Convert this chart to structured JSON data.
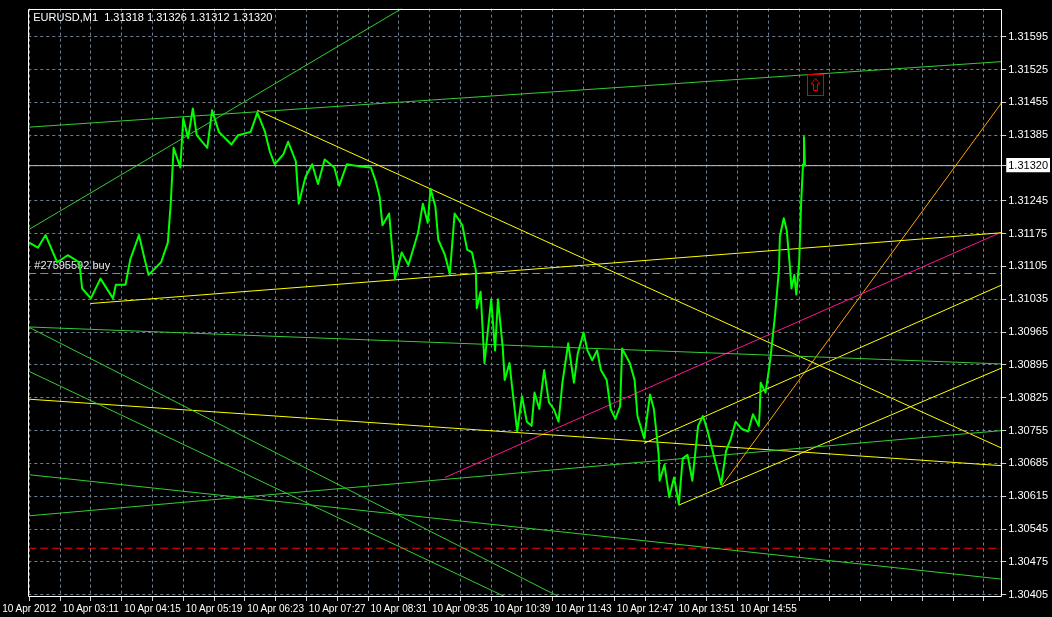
{
  "chart_data": {
    "type": "line",
    "title": "EURUSD,M1  1.31318 1.31326 1.31312 1.31320",
    "series": [
      {
        "color": "#00ff00",
        "x": [
          "2012-04-10T02:07",
          "2012-04-10T02:16",
          "2012-04-10T02:24",
          "2012-04-10T02:36",
          "2012-04-10T02:47",
          "2012-04-10T02:59",
          "2012-04-10T03:02",
          "2012-04-10T03:11",
          "2012-04-10T03:21",
          "2012-04-10T03:34",
          "2012-04-10T03:37",
          "2012-04-10T03:47",
          "2012-04-10T03:52",
          "2012-04-10T04:01",
          "2012-04-10T04:07",
          "2012-04-10T04:11",
          "2012-04-10T04:24",
          "2012-04-10T04:31",
          "2012-04-10T04:34",
          "2012-04-10T04:37",
          "2012-04-10T04:44",
          "2012-04-10T04:47",
          "2012-04-10T04:52",
          "2012-04-10T04:57",
          "2012-04-10T05:01",
          "2012-04-10T05:12",
          "2012-04-10T05:17",
          "2012-04-10T05:24",
          "2012-04-10T05:37",
          "2012-04-10T05:44",
          "2012-04-10T05:57",
          "2012-04-10T06:04",
          "2012-04-10T06:12",
          "2012-04-10T06:17",
          "2012-04-10T06:22",
          "2012-04-10T06:31",
          "2012-04-10T06:36",
          "2012-04-10T06:44",
          "2012-04-10T06:47",
          "2012-04-10T06:54",
          "2012-04-10T07:01",
          "2012-04-10T07:07",
          "2012-04-10T07:14",
          "2012-04-10T07:24",
          "2012-04-10T07:29",
          "2012-04-10T07:37",
          "2012-04-10T07:49",
          "2012-04-10T08:02",
          "2012-04-10T08:07",
          "2012-04-10T08:11",
          "2012-04-10T08:14",
          "2012-04-10T08:21",
          "2012-04-10T08:24",
          "2012-04-10T08:27",
          "2012-04-10T08:34",
          "2012-04-10T08:41",
          "2012-04-10T08:51",
          "2012-04-10T08:56",
          "2012-04-10T09:01",
          "2012-04-10T09:04",
          "2012-04-10T09:09",
          "2012-04-10T09:12",
          "2012-04-10T09:19",
          "2012-04-10T09:24",
          "2012-04-10T09:29",
          "2012-04-10T09:37",
          "2012-04-10T09:42",
          "2012-04-10T09:47",
          "2012-04-10T09:51",
          "2012-04-10T09:52",
          "2012-04-10T09:56",
          "2012-04-10T10:00",
          "2012-04-10T10:07",
          "2012-04-10T10:11",
          "2012-04-10T10:14",
          "2012-04-10T10:19",
          "2012-04-10T10:21",
          "2012-04-10T10:26",
          "2012-04-10T10:29",
          "2012-04-10T10:34",
          "2012-04-10T10:39",
          "2012-04-10T10:44",
          "2012-04-10T10:49",
          "2012-04-10T10:52",
          "2012-04-10T10:57",
          "2012-04-10T11:02",
          "2012-04-10T11:07",
          "2012-04-10T11:12",
          "2012-04-10T11:17",
          "2012-04-10T11:21",
          "2012-04-10T11:27",
          "2012-04-10T11:33",
          "2012-04-10T11:37",
          "2012-04-10T11:43",
          "2012-04-10T11:47",
          "2012-04-10T11:52",
          "2012-04-10T11:57",
          "2012-04-10T12:01",
          "2012-04-10T12:07",
          "2012-04-10T12:11",
          "2012-04-10T12:16",
          "2012-04-10T12:21",
          "2012-04-10T12:23",
          "2012-04-10T12:31",
          "2012-04-10T12:36",
          "2012-04-10T12:39",
          "2012-04-10T12:46",
          "2012-04-10T12:52",
          "2012-04-10T12:56",
          "2012-04-10T12:59",
          "2012-04-10T13:01",
          "2012-04-10T13:02",
          "2012-04-10T13:07",
          "2012-04-10T13:12",
          "2012-04-10T13:17",
          "2012-04-10T13:22",
          "2012-04-10T13:26",
          "2012-04-10T13:31",
          "2012-04-10T13:36",
          "2012-04-10T13:42",
          "2012-04-10T13:47",
          "2012-04-10T13:52",
          "2012-04-10T13:59",
          "2012-04-10T14:06",
          "2012-04-10T14:11",
          "2012-04-10T14:16",
          "2012-04-10T14:21",
          "2012-04-10T14:27",
          "2012-04-10T14:34",
          "2012-04-10T14:39",
          "2012-04-10T14:45",
          "2012-04-10T14:46",
          "2012-04-10T14:47",
          "2012-04-10T14:52",
          "2012-04-10T14:56",
          "2012-04-10T14:58",
          "2012-04-10T15:02",
          "2012-04-10T15:06",
          "2012-04-10T15:07",
          "2012-04-10T15:11",
          "2012-04-10T15:14",
          "2012-04-10T15:17",
          "2012-04-10T15:19",
          "2012-04-10T15:22",
          "2012-04-10T15:24",
          "2012-04-10T15:27",
          "2012-04-10T15:29",
          "2012-04-10T15:31",
          "2012-04-10T15:32",
          "2012-04-10T15:33"
        ],
        "values": [
          1.31156,
          1.31145,
          1.31172,
          1.31114,
          1.31129,
          1.31114,
          1.31058,
          1.31037,
          1.31079,
          1.31037,
          1.31066,
          1.31066,
          1.3112,
          1.31172,
          1.3112,
          1.31087,
          1.31114,
          1.31156,
          1.31239,
          1.31358,
          1.31316,
          1.31421,
          1.31379,
          1.31442,
          1.31385,
          1.31358,
          1.31438,
          1.31392,
          1.31365,
          1.31385,
          1.31392,
          1.31433,
          1.31392,
          1.3135,
          1.31323,
          1.31344,
          1.31371,
          1.31329,
          1.31239,
          1.31296,
          1.31323,
          1.31281,
          1.31333,
          1.31316,
          1.31277,
          1.31323,
          1.31319,
          1.31316,
          1.31287,
          1.31254,
          1.31193,
          1.31218,
          1.31145,
          1.31079,
          1.31135,
          1.31108,
          1.31177,
          1.31239,
          1.31198,
          1.31271,
          1.31233,
          1.31162,
          1.31129,
          1.31089,
          1.31218,
          1.31193,
          1.31141,
          1.31135,
          1.31097,
          1.31016,
          1.31051,
          1.30899,
          1.31035,
          1.30926,
          1.31035,
          1.30932,
          1.30863,
          1.30899,
          1.30843,
          1.30753,
          1.30828,
          1.30774,
          1.30765,
          1.30836,
          1.30801,
          1.30884,
          1.30815,
          1.30801,
          1.30774,
          1.30857,
          1.30941,
          1.30857,
          1.3092,
          1.30964,
          1.30926,
          1.30905,
          1.30926,
          1.30884,
          1.30863,
          1.30801,
          1.3078,
          1.30807,
          1.3093,
          1.30899,
          1.30863,
          1.30786,
          1.30738,
          1.30832,
          1.30801,
          1.30744,
          1.30703,
          1.30648,
          1.30682,
          1.30613,
          1.30655,
          1.30598,
          1.30696,
          1.30703,
          1.30648,
          1.30765,
          1.30786,
          1.30753,
          1.30696,
          1.3064,
          1.30711,
          1.30738,
          1.30774,
          1.30759,
          1.30753,
          1.3079,
          1.30765,
          1.30795,
          1.30857,
          1.30836,
          1.30891,
          1.30926,
          1.31003,
          1.31099,
          1.3117,
          1.31208,
          1.31183,
          1.31114,
          1.31058,
          1.31087,
          1.31045,
          1.31114,
          1.31239,
          1.31323,
          1.31381,
          1.3132
        ]
      },
      {
        "color": "#32cd32",
        "x": [
          "2012-04-10T02:06",
          "2012-04-10T08:34"
        ],
        "values": [
          1.31183,
          1.31655
        ]
      },
      {
        "color": "#32cd32",
        "x": [
          "2012-04-10T02:06",
          "2012-04-10T18:58"
        ],
        "values": [
          1.31402,
          1.31542
        ]
      },
      {
        "color": "#32cd32",
        "x": [
          "2012-04-10T02:06",
          "2012-04-10T18:58"
        ],
        "values": [
          1.30976,
          1.30897
        ]
      },
      {
        "color": "#32cd32",
        "x": [
          "2012-04-10T02:06",
          "2012-04-10T11:18"
        ],
        "values": [
          1.30976,
          1.304
        ]
      },
      {
        "color": "#32cd32",
        "x": [
          "2012-04-10T02:06",
          "2012-04-10T10:22"
        ],
        "values": [
          1.30882,
          1.304
        ]
      },
      {
        "color": "#32cd32",
        "x": [
          "2012-04-10T02:06",
          "2012-04-10T18:58"
        ],
        "values": [
          1.30661,
          1.30438
        ]
      },
      {
        "color": "#32cd32",
        "x": [
          "2012-04-10T02:06",
          "2012-04-10T18:58"
        ],
        "values": [
          1.30573,
          1.30755
        ]
      },
      {
        "color": "#ffff00",
        "x": [
          "2012-04-10T06:04",
          "2012-04-10T18:58"
        ],
        "values": [
          1.31438,
          1.30717
        ]
      },
      {
        "color": "#ffff00",
        "x": [
          "2012-04-10T03:11",
          "2012-04-10T18:58"
        ],
        "values": [
          1.31026,
          1.31177
        ]
      },
      {
        "color": "#ffff00",
        "x": [
          "2012-04-10T02:06",
          "2012-04-10T18:58"
        ],
        "values": [
          1.30822,
          1.3068
        ]
      },
      {
        "color": "#ffff00",
        "x": [
          "2012-04-10T12:46",
          "2012-04-10T18:58"
        ],
        "values": [
          1.30728,
          1.31066
        ]
      },
      {
        "color": "#ffff00",
        "x": [
          "2012-04-10T13:22",
          "2012-04-10T18:58"
        ],
        "values": [
          1.30596,
          1.30889
        ]
      },
      {
        "color": "#ff1493",
        "x": [
          "2012-04-10T09:19",
          "2012-04-10T18:58"
        ],
        "values": [
          1.30655,
          1.31179
        ]
      },
      {
        "color": "#ffa500",
        "x": [
          "2012-04-10T14:07",
          "2012-04-10T18:58"
        ],
        "values": [
          1.30638,
          1.31456
        ]
      }
    ],
    "xlim": [
      "2012-04-10T02:06",
      "2012-04-10T18:58"
    ],
    "xticks": [
      {
        "value": "2012-04-10T02:07",
        "label": "10 Apr 2012"
      },
      {
        "value": "2012-04-10T02:39",
        "label": null
      },
      {
        "value": "2012-04-10T03:11",
        "label": "10 Apr 03:11"
      },
      {
        "value": "2012-04-10T03:43",
        "label": null
      },
      {
        "value": "2012-04-10T04:15",
        "label": "10 Apr 04:15"
      },
      {
        "value": "2012-04-10T04:47",
        "label": null
      },
      {
        "value": "2012-04-10T05:19",
        "label": "10 Apr 05:19"
      },
      {
        "value": "2012-04-10T05:51",
        "label": null
      },
      {
        "value": "2012-04-10T06:23",
        "label": "10 Apr 06:23"
      },
      {
        "value": "2012-04-10T06:55",
        "label": null
      },
      {
        "value": "2012-04-10T07:27",
        "label": "10 Apr 07:27"
      },
      {
        "value": "2012-04-10T07:59",
        "label": null
      },
      {
        "value": "2012-04-10T08:31",
        "label": "10 Apr 08:31"
      },
      {
        "value": "2012-04-10T09:03",
        "label": null
      },
      {
        "value": "2012-04-10T09:35",
        "label": "10 Apr 09:35"
      },
      {
        "value": "2012-04-10T10:07",
        "label": null
      },
      {
        "value": "2012-04-10T10:39",
        "label": "10 Apr 10:39"
      },
      {
        "value": "2012-04-10T11:11",
        "label": null
      },
      {
        "value": "2012-04-10T11:43",
        "label": "10 Apr 11:43"
      },
      {
        "value": "2012-04-10T12:15",
        "label": null
      },
      {
        "value": "2012-04-10T12:47",
        "label": "10 Apr 12:47"
      },
      {
        "value": "2012-04-10T13:19",
        "label": null
      },
      {
        "value": "2012-04-10T13:51",
        "label": "10 Apr 13:51"
      },
      {
        "value": "2012-04-10T14:23",
        "label": null
      },
      {
        "value": "2012-04-10T14:55",
        "label": "10 Apr 14:55"
      },
      {
        "value": "2012-04-10T15:27",
        "label": null
      },
      {
        "value": "2012-04-10T15:59",
        "label": null
      },
      {
        "value": "2012-04-10T16:31",
        "label": null
      },
      {
        "value": "2012-04-10T17:03",
        "label": null
      },
      {
        "value": "2012-04-10T17:35",
        "label": null
      },
      {
        "value": "2012-04-10T18:07",
        "label": null
      },
      {
        "value": "2012-04-10T18:39",
        "label": null
      }
    ],
    "ylim": [
      1.304,
      1.31655
    ],
    "yticks": [
      1.30405,
      1.30475,
      1.30545,
      1.30615,
      1.30685,
      1.30755,
      1.30825,
      1.30895,
      1.30965,
      1.31035,
      1.31105,
      1.31175,
      1.31245,
      {
        "value": 1.3132,
        "label": "1.31320"
      },
      1.31385,
      1.31455,
      1.31525,
      1.31595
    ],
    "ref_lines": [
      {
        "axis": "y",
        "value": 1.3132,
        "color": "#c0c0c0",
        "line_style": "solid"
      },
      {
        "axis": "y",
        "value": 1.3109,
        "label": "#27595592 buy",
        "color": "#32cd32",
        "line_style": "dashed"
      },
      {
        "axis": "y",
        "value": 1.30504,
        "color": "#ff0000",
        "line_style": "dashed"
      }
    ],
    "grid": true,
    "marker": "none",
    "line_style": "solid"
  }
}
